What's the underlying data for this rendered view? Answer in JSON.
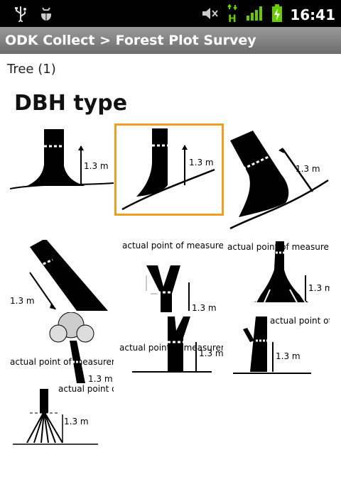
{
  "status_bar": {
    "icons": [
      "usb-icon",
      "debug-bug-icon",
      "mute-icon",
      "network-h-icon",
      "signal-icon",
      "battery-charging-icon"
    ],
    "time": "16:41"
  },
  "title_bar": {
    "title": "ODK Collect > Forest Plot Survey"
  },
  "group_label": "Tree (1)",
  "question": {
    "label": "DBH type"
  },
  "options": [
    {
      "name": "straight-tree",
      "labels": [
        "1.3 m"
      ],
      "selected": false
    },
    {
      "name": "tree-on-slope",
      "labels": [
        "1.3 m"
      ],
      "selected": true
    },
    {
      "name": "leaning-tree-on-slope",
      "labels": [
        "1.3 m"
      ],
      "selected": false
    },
    {
      "name": "leaning-tree",
      "labels": [
        "1.3 m"
      ],
      "selected": false
    },
    {
      "name": "forked-tree-below-1.3m",
      "labels": [
        "actual point of measurement",
        "1.3 m"
      ],
      "selected": false
    },
    {
      "name": "buttressed-tree",
      "labels": [
        "actual point of measurement",
        "1.3 m"
      ],
      "selected": false
    },
    {
      "name": "tree-with-deformity",
      "labels": [
        "actual point of measurement",
        "1.3 m"
      ],
      "selected": false
    },
    {
      "name": "forked-tree-above-1.3m",
      "labels": [
        "actual point of measurement",
        "1.3 m"
      ],
      "selected": false
    },
    {
      "name": "tree-with-branch-at-1.3m",
      "labels": [
        "actual point of measurement",
        "1.3 m"
      ],
      "selected": false
    },
    {
      "name": "stilt-root-tree",
      "labels": [
        "actual point of measurement",
        "1.3 m"
      ],
      "selected": false
    }
  ]
}
